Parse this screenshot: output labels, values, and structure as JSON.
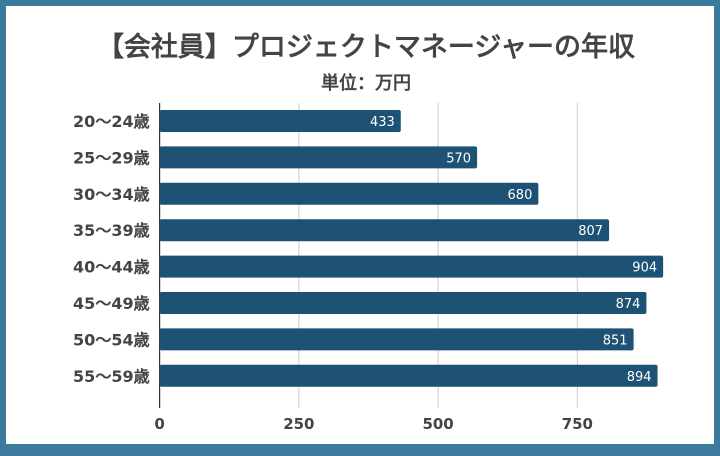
{
  "chart_data": {
    "type": "bar",
    "orientation": "horizontal",
    "title": "【会社員】プロジェクトマネージャーの年収",
    "subtitle": "単位：万円",
    "xlabel": "",
    "ylabel": "",
    "categories": [
      "20〜24歳",
      "25〜29歳",
      "30〜34歳",
      "35〜39歳",
      "40〜44歳",
      "45〜49歳",
      "50〜54歳",
      "55〜59歳"
    ],
    "values": [
      433,
      570,
      680,
      807,
      904,
      874,
      851,
      894
    ],
    "xlim": [
      0,
      900
    ],
    "xticks": [
      0,
      250,
      500,
      750
    ],
    "grid": true,
    "legend": "none",
    "colors": {
      "bar": "#1d5275",
      "border": "#3b7a9c",
      "text": "#444444",
      "grid": "#cccccc"
    }
  }
}
